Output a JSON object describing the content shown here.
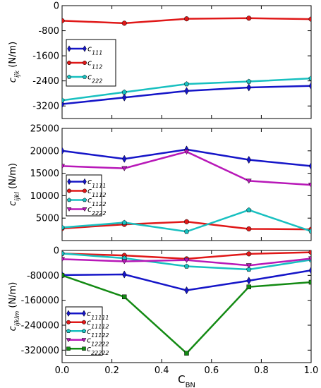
{
  "chart_data": [
    {
      "type": "line",
      "ylabel_main": "c",
      "ylabel_sub": "ijk",
      "ylabel_unit": " (N/m)",
      "x": [
        0.0,
        0.25,
        0.5,
        0.75,
        1.0
      ],
      "xlim": [
        0.0,
        1.0
      ],
      "ylim": [
        -3600,
        0
      ],
      "yticks": [
        0,
        -800,
        -1600,
        -2400,
        -3200
      ],
      "ytick_labels": [
        "0",
        "-800",
        "-1600",
        "-2400",
        "-3200"
      ],
      "legend_position": "center-left",
      "series": [
        {
          "name_main": "c",
          "name_sub": "111",
          "color": "#1515c8",
          "marker": "diamond",
          "values": [
            -3140,
            -2930,
            -2720,
            -2610,
            -2560
          ]
        },
        {
          "name_main": "c",
          "name_sub": "112",
          "color": "#e01818",
          "marker": "circle",
          "values": [
            -480,
            -560,
            -420,
            -400,
            -430
          ]
        },
        {
          "name_main": "c",
          "name_sub": "222",
          "color": "#18c0c0",
          "marker": "pentagon",
          "values": [
            -3020,
            -2760,
            -2500,
            -2420,
            -2320
          ]
        }
      ]
    },
    {
      "type": "line",
      "ylabel_main": "c",
      "ylabel_sub": "ijkl",
      "ylabel_unit": " (N/m)",
      "x": [
        0.0,
        0.25,
        0.5,
        0.75,
        1.0
      ],
      "xlim": [
        0.0,
        1.0
      ],
      "ylim": [
        0,
        25000
      ],
      "yticks": [
        25000,
        20000,
        15000,
        10000,
        5000
      ],
      "ytick_labels": [
        "25000",
        "20000",
        "15000",
        "10000",
        "5000"
      ],
      "legend_position": "center-left",
      "series": [
        {
          "name_main": "c",
          "name_sub": "1111",
          "color": "#1515c8",
          "marker": "diamond",
          "values": [
            20000,
            18200,
            20300,
            18000,
            16600
          ]
        },
        {
          "name_main": "c",
          "name_sub": "1112",
          "color": "#e01818",
          "marker": "circle",
          "values": [
            2700,
            3600,
            4200,
            2600,
            2500
          ]
        },
        {
          "name_main": "c",
          "name_sub": "1122",
          "color": "#18c0c0",
          "marker": "pentagon",
          "values": [
            2900,
            4000,
            2000,
            6800,
            2100
          ]
        },
        {
          "name_main": "c",
          "name_sub": "2222",
          "color": "#b818b8",
          "marker": "triangle-down",
          "values": [
            16600,
            16100,
            19800,
            13300,
            12400
          ]
        }
      ]
    },
    {
      "type": "line",
      "ylabel_main": "c",
      "ylabel_sub": "ijklm",
      "ylabel_unit": " (N/m)",
      "x": [
        0.0,
        0.25,
        0.5,
        0.75,
        1.0
      ],
      "x_ticks": [
        0.0,
        0.2,
        0.4,
        0.6,
        0.8,
        1.0
      ],
      "x_tick_labels": [
        "0.0",
        "0.2",
        "0.4",
        "0.6",
        "0.8",
        "1.0"
      ],
      "xlabel_main": "C",
      "xlabel_sub": "BN",
      "xlim": [
        0.0,
        1.0
      ],
      "ylim": [
        -360000,
        0
      ],
      "yticks": [
        0,
        -80000,
        -160000,
        -240000,
        -320000
      ],
      "ytick_labels": [
        "0",
        "-80000",
        "-160000",
        "-240000",
        "-320000"
      ],
      "legend_position": "bottom-left",
      "series": [
        {
          "name_main": "c",
          "name_sub": "11111",
          "color": "#1515c8",
          "marker": "diamond",
          "values": [
            -79000,
            -77000,
            -128000,
            -97000,
            -64000
          ]
        },
        {
          "name_main": "c",
          "name_sub": "11112",
          "color": "#e01818",
          "marker": "circle",
          "values": [
            -10000,
            -16000,
            -27000,
            -11000,
            -6000
          ]
        },
        {
          "name_main": "c",
          "name_sub": "11122",
          "color": "#18c0c0",
          "marker": "pentagon",
          "values": [
            -10000,
            -25000,
            -51000,
            -61000,
            -30000
          ]
        },
        {
          "name_main": "c",
          "name_sub": "12222",
          "color": "#b818b8",
          "marker": "triangle-down",
          "values": [
            -28000,
            -35000,
            -31000,
            -48000,
            -26000
          ]
        },
        {
          "name_main": "c",
          "name_sub": "22222",
          "color": "#138a13",
          "marker": "square",
          "values": [
            -80000,
            -149000,
            -330000,
            -117000,
            -102000
          ]
        }
      ]
    }
  ]
}
